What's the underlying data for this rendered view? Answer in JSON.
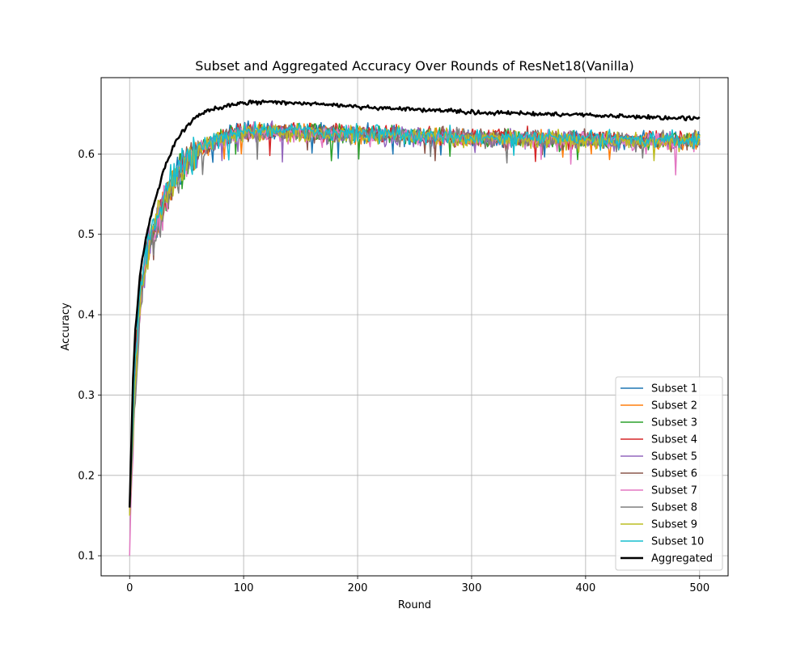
{
  "chart_data": {
    "type": "line",
    "title": "Subset and Aggregated Accuracy Over Rounds of ResNet18(Vanilla)",
    "xlabel": "Round",
    "ylabel": "Accuracy",
    "xlim": [
      -25,
      525
    ],
    "ylim": [
      0.075,
      0.695
    ],
    "xticks": [
      0,
      100,
      200,
      300,
      400,
      500
    ],
    "yticks": [
      0.1,
      0.2,
      0.3,
      0.4,
      0.5,
      0.6
    ],
    "ytick_labels": [
      "0.1",
      "0.2",
      "0.3",
      "0.4",
      "0.5",
      "0.6"
    ],
    "grid": true,
    "legend_position": "lower right",
    "rounds": 500,
    "series": [
      {
        "name": "Subset 1",
        "color": "#1f77b4",
        "linewidth": 1.5,
        "x": [
          0,
          5,
          10,
          15,
          20,
          30,
          40,
          50,
          60,
          70,
          80,
          100,
          130,
          150,
          200,
          250,
          300,
          350,
          400,
          450,
          500
        ],
        "y": [
          0.16,
          0.35,
          0.44,
          0.48,
          0.5,
          0.54,
          0.57,
          0.59,
          0.605,
          0.613,
          0.62,
          0.628,
          0.628,
          0.627,
          0.625,
          0.623,
          0.621,
          0.619,
          0.618,
          0.617,
          0.616
        ]
      },
      {
        "name": "Subset 2",
        "color": "#ff7f0e",
        "linewidth": 1.5,
        "x": [
          0,
          5,
          10,
          15,
          20,
          30,
          40,
          50,
          60,
          70,
          80,
          100,
          130,
          150,
          200,
          250,
          300,
          350,
          400,
          450,
          500
        ],
        "y": [
          0.15,
          0.34,
          0.43,
          0.47,
          0.5,
          0.54,
          0.57,
          0.59,
          0.604,
          0.612,
          0.619,
          0.627,
          0.627,
          0.626,
          0.624,
          0.622,
          0.62,
          0.618,
          0.617,
          0.616,
          0.615
        ]
      },
      {
        "name": "Subset 3",
        "color": "#2ca02c",
        "linewidth": 1.5,
        "x": [
          0,
          5,
          10,
          15,
          20,
          30,
          40,
          50,
          60,
          70,
          80,
          100,
          130,
          150,
          200,
          250,
          300,
          350,
          400,
          450,
          500
        ],
        "y": [
          0.16,
          0.33,
          0.43,
          0.47,
          0.5,
          0.54,
          0.57,
          0.59,
          0.604,
          0.612,
          0.619,
          0.627,
          0.628,
          0.627,
          0.625,
          0.623,
          0.621,
          0.619,
          0.618,
          0.617,
          0.616
        ]
      },
      {
        "name": "Subset 4",
        "color": "#d62728",
        "linewidth": 1.5,
        "x": [
          0,
          5,
          10,
          15,
          20,
          30,
          40,
          50,
          60,
          70,
          80,
          100,
          130,
          150,
          200,
          250,
          300,
          350,
          400,
          450,
          500
        ],
        "y": [
          0.15,
          0.34,
          0.44,
          0.48,
          0.5,
          0.54,
          0.57,
          0.59,
          0.605,
          0.613,
          0.62,
          0.628,
          0.629,
          0.628,
          0.626,
          0.624,
          0.622,
          0.62,
          0.619,
          0.618,
          0.617
        ]
      },
      {
        "name": "Subset 5",
        "color": "#9467bd",
        "linewidth": 1.5,
        "x": [
          0,
          5,
          10,
          15,
          20,
          30,
          40,
          50,
          60,
          70,
          80,
          100,
          130,
          150,
          200,
          250,
          300,
          350,
          400,
          450,
          500
        ],
        "y": [
          0.15,
          0.33,
          0.42,
          0.47,
          0.5,
          0.54,
          0.57,
          0.59,
          0.604,
          0.612,
          0.619,
          0.627,
          0.627,
          0.626,
          0.624,
          0.622,
          0.62,
          0.618,
          0.617,
          0.616,
          0.615
        ]
      },
      {
        "name": "Subset 6",
        "color": "#8c564b",
        "linewidth": 1.5,
        "x": [
          0,
          5,
          10,
          15,
          20,
          30,
          40,
          50,
          60,
          70,
          80,
          100,
          130,
          150,
          200,
          250,
          300,
          350,
          400,
          450,
          500
        ],
        "y": [
          0.16,
          0.34,
          0.43,
          0.47,
          0.5,
          0.54,
          0.57,
          0.59,
          0.604,
          0.612,
          0.619,
          0.627,
          0.628,
          0.627,
          0.625,
          0.623,
          0.621,
          0.619,
          0.618,
          0.617,
          0.616
        ]
      },
      {
        "name": "Subset 7",
        "color": "#e377c2",
        "linewidth": 1.5,
        "x": [
          0,
          5,
          10,
          15,
          20,
          30,
          40,
          50,
          60,
          70,
          80,
          100,
          130,
          150,
          200,
          250,
          300,
          350,
          400,
          450,
          500
        ],
        "y": [
          0.1,
          0.32,
          0.42,
          0.47,
          0.5,
          0.54,
          0.57,
          0.59,
          0.604,
          0.612,
          0.619,
          0.626,
          0.626,
          0.625,
          0.623,
          0.621,
          0.619,
          0.617,
          0.616,
          0.615,
          0.614
        ]
      },
      {
        "name": "Subset 8",
        "color": "#7f7f7f",
        "linewidth": 1.5,
        "x": [
          0,
          5,
          10,
          15,
          20,
          30,
          40,
          50,
          60,
          70,
          80,
          100,
          130,
          150,
          200,
          250,
          300,
          350,
          400,
          450,
          500
        ],
        "y": [
          0.15,
          0.3,
          0.42,
          0.46,
          0.49,
          0.53,
          0.565,
          0.588,
          0.603,
          0.611,
          0.618,
          0.626,
          0.627,
          0.626,
          0.624,
          0.622,
          0.62,
          0.618,
          0.617,
          0.616,
          0.615
        ]
      },
      {
        "name": "Subset 9",
        "color": "#bcbd22",
        "linewidth": 1.5,
        "x": [
          0,
          5,
          10,
          15,
          20,
          30,
          40,
          50,
          60,
          70,
          80,
          100,
          130,
          150,
          200,
          250,
          300,
          350,
          400,
          450,
          500
        ],
        "y": [
          0.15,
          0.33,
          0.43,
          0.47,
          0.5,
          0.54,
          0.57,
          0.59,
          0.603,
          0.611,
          0.618,
          0.626,
          0.627,
          0.626,
          0.624,
          0.622,
          0.62,
          0.618,
          0.617,
          0.616,
          0.615
        ]
      },
      {
        "name": "Subset 10",
        "color": "#17becf",
        "linewidth": 1.5,
        "x": [
          0,
          5,
          10,
          15,
          20,
          30,
          40,
          50,
          60,
          70,
          80,
          100,
          130,
          150,
          200,
          250,
          300,
          350,
          400,
          450,
          500
        ],
        "y": [
          0.16,
          0.35,
          0.44,
          0.48,
          0.51,
          0.545,
          0.573,
          0.592,
          0.606,
          0.614,
          0.621,
          0.629,
          0.629,
          0.628,
          0.626,
          0.624,
          0.622,
          0.62,
          0.619,
          0.618,
          0.617
        ]
      },
      {
        "name": "Aggregated",
        "color": "#000000",
        "linewidth": 2.5,
        "x": [
          0,
          3,
          5,
          8,
          10,
          15,
          20,
          25,
          30,
          40,
          50,
          60,
          70,
          80,
          90,
          100,
          110,
          120,
          130,
          150,
          175,
          200,
          225,
          250,
          275,
          300,
          325,
          350,
          375,
          400,
          425,
          450,
          475,
          500
        ],
        "y": [
          0.16,
          0.32,
          0.38,
          0.43,
          0.46,
          0.5,
          0.53,
          0.555,
          0.58,
          0.615,
          0.635,
          0.648,
          0.654,
          0.658,
          0.661,
          0.663,
          0.664,
          0.665,
          0.664,
          0.663,
          0.661,
          0.659,
          0.657,
          0.656,
          0.654,
          0.652,
          0.651,
          0.65,
          0.649,
          0.649,
          0.647,
          0.646,
          0.645,
          0.645
        ]
      }
    ]
  }
}
